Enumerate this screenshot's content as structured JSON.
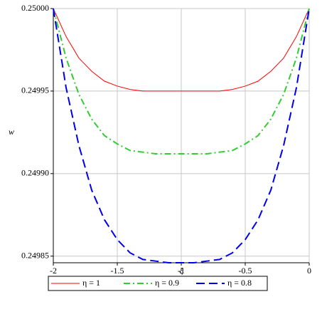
{
  "chart_data": {
    "type": "line",
    "x_label": "ξ",
    "y_label": "w",
    "x": [
      -2,
      -1.9,
      -1.8,
      -1.7,
      -1.6,
      -1.5,
      -1.4,
      -1.3,
      -1.2,
      -1.1,
      -1,
      -0.9,
      -0.8,
      -0.7,
      -0.6,
      -0.5,
      -0.4,
      -0.3,
      -0.2,
      -0.1,
      0
    ],
    "series": [
      {
        "name": "η = 1",
        "color": "#ff0000",
        "dash": "solid",
        "values": [
          0.25,
          0.249983,
          0.24997,
          0.249962,
          0.249956,
          0.249953,
          0.249951,
          0.24995,
          0.24995,
          0.24995,
          0.24995,
          0.24995,
          0.24995,
          0.24995,
          0.249951,
          0.249953,
          0.249956,
          0.249962,
          0.24997,
          0.249983,
          0.25
        ]
      },
      {
        "name": "η = 0.9",
        "color": "#33cc33",
        "dash": "dashdot",
        "values": [
          0.25,
          0.24997,
          0.249948,
          0.249933,
          0.249923,
          0.249918,
          0.249914,
          0.249913,
          0.249912,
          0.249912,
          0.249912,
          0.249912,
          0.249912,
          0.249913,
          0.249914,
          0.249918,
          0.249923,
          0.249933,
          0.249948,
          0.24997,
          0.25
        ]
      },
      {
        "name": "η = 0.8",
        "color": "#0000ee",
        "dash": "dashed",
        "values": [
          0.25,
          0.249952,
          0.249917,
          0.24989,
          0.249872,
          0.24986,
          0.249852,
          0.249848,
          0.249847,
          0.249846,
          0.249846,
          0.249846,
          0.249847,
          0.249848,
          0.249852,
          0.24986,
          0.249872,
          0.24989,
          0.249917,
          0.249952,
          0.25
        ]
      }
    ],
    "xlim": [
      -2,
      0
    ],
    "ylim": [
      0.249846,
      0.25
    ],
    "xticks": [
      -2,
      -1.5,
      -1,
      -0.5,
      0
    ],
    "yticks": [
      0.24985,
      {
        "value": 0.2499,
        "label": "0.24990"
      },
      0.24995,
      {
        "value": 0.25,
        "label": "0.25000"
      }
    ],
    "grid": true,
    "legend": "bottom"
  }
}
